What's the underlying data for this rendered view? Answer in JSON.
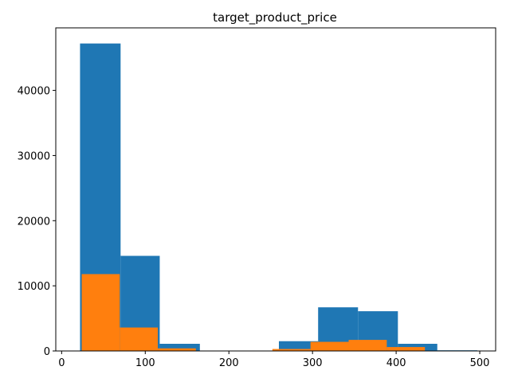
{
  "chart_data": {
    "type": "bar",
    "title": "target_product_price",
    "xlabel": "",
    "ylabel": "",
    "xlim": [
      -7,
      519
    ],
    "ylim": [
      0,
      49600
    ],
    "x_ticks": [
      0,
      100,
      200,
      300,
      400,
      500
    ],
    "y_ticks": [
      0,
      10000,
      20000,
      30000,
      40000
    ],
    "grid": false,
    "series": [
      {
        "color": "#1f77b4",
        "bins": [
          {
            "x0": 22,
            "x1": 70.5,
            "value": 47200
          },
          {
            "x0": 70.5,
            "x1": 117.3,
            "value": 14600
          },
          {
            "x0": 117.3,
            "x1": 165.3,
            "value": 1100
          },
          {
            "x0": 165.3,
            "x1": 212.8,
            "value": 0
          },
          {
            "x0": 212.8,
            "x1": 259.8,
            "value": 0
          },
          {
            "x0": 259.8,
            "x1": 306.7,
            "value": 1500
          },
          {
            "x0": 306.7,
            "x1": 354.4,
            "value": 6700
          },
          {
            "x0": 354.4,
            "x1": 402.1,
            "value": 6100
          },
          {
            "x0": 402.1,
            "x1": 449.2,
            "value": 1100
          },
          {
            "x0": 449.2,
            "x1": 497,
            "value": 100
          }
        ]
      },
      {
        "color": "#ff7f0e",
        "bins": [
          {
            "x0": 24,
            "x1": 69.5,
            "value": 11800
          },
          {
            "x0": 69.5,
            "x1": 115,
            "value": 3600
          },
          {
            "x0": 115,
            "x1": 160.5,
            "value": 400
          },
          {
            "x0": 160.5,
            "x1": 206,
            "value": 0
          },
          {
            "x0": 206,
            "x1": 252,
            "value": 0
          },
          {
            "x0": 252,
            "x1": 297.6,
            "value": 300
          },
          {
            "x0": 297.6,
            "x1": 343.2,
            "value": 1400
          },
          {
            "x0": 343.2,
            "x1": 388.8,
            "value": 1700
          },
          {
            "x0": 388.8,
            "x1": 434.4,
            "value": 600
          }
        ]
      }
    ]
  }
}
